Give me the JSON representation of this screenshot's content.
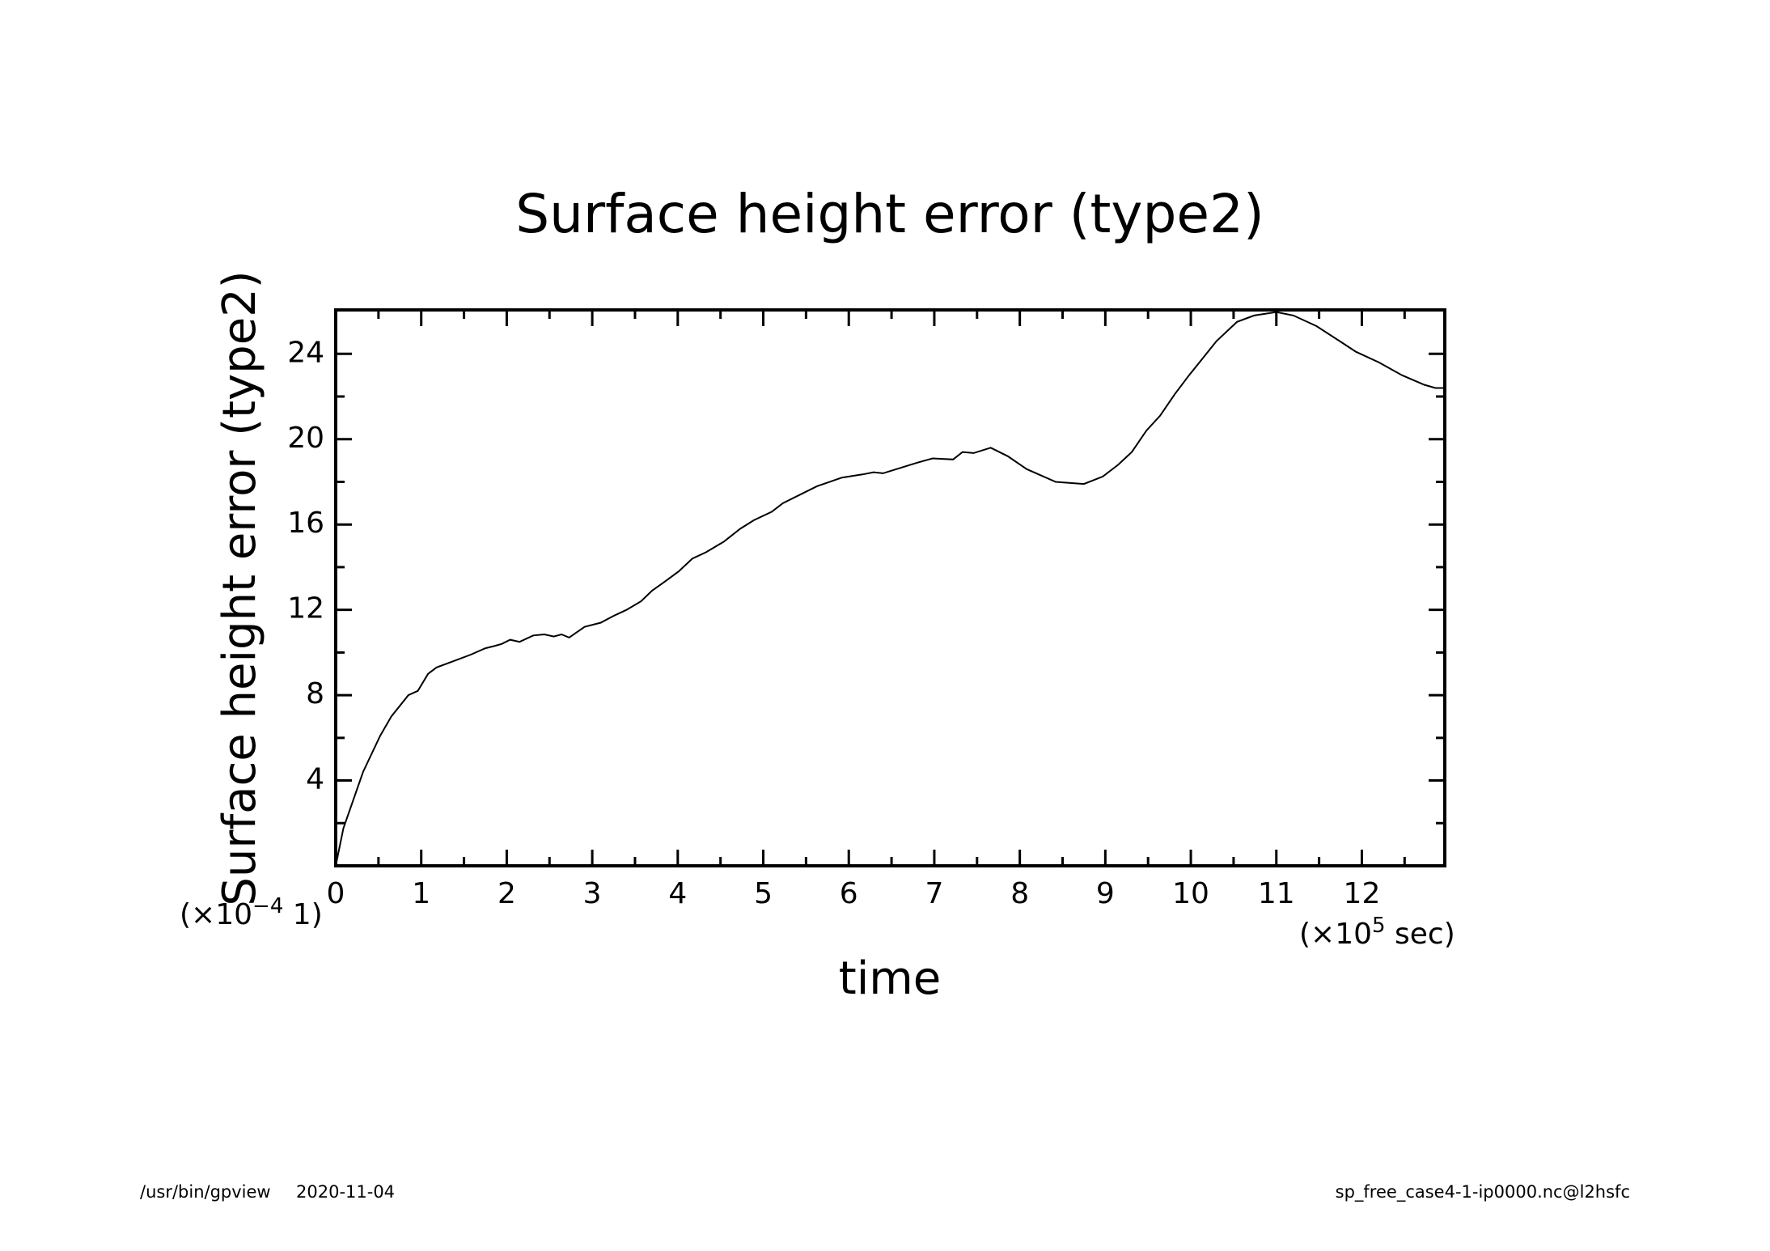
{
  "chart_data": {
    "type": "line",
    "title": "Surface height error (type2)",
    "xlabel": "time",
    "ylabel": "Surface height error (type2)",
    "x_multiplier": {
      "prefix": "(×10",
      "exponent": "5",
      "suffix": " sec)"
    },
    "y_multiplier": {
      "prefix": "(×10",
      "exponent": "−4",
      "suffix": " 1)"
    },
    "xlim": [
      0,
      12.97
    ],
    "ylim": [
      0,
      26.06
    ],
    "xticks": [
      0,
      1,
      2,
      3,
      4,
      5,
      6,
      7,
      8,
      9,
      10,
      11,
      12
    ],
    "yticks": [
      4,
      8,
      12,
      16,
      20,
      24
    ],
    "xminor_ticks": [
      0.5,
      1.5,
      2.5,
      3.5,
      4.5,
      5.5,
      6.5,
      7.5,
      8.5,
      9.5,
      10.5,
      11.5,
      12.5
    ],
    "yminor_ticks": [
      2,
      6,
      10,
      14,
      18,
      22
    ],
    "series": [
      {
        "color": "#000000",
        "x": [
          0,
          0.09,
          0.32,
          0.52,
          0.65,
          0.85,
          0.96,
          1.08,
          1.18,
          1.38,
          1.58,
          1.75,
          1.85,
          1.94,
          2.04,
          2.15,
          2.31,
          2.44,
          2.55,
          2.64,
          2.73,
          2.91,
          3.1,
          3.24,
          3.4,
          3.57,
          3.7,
          3.84,
          4.01,
          4.17,
          4.33,
          4.54,
          4.73,
          4.89,
          5.1,
          5.23,
          5.43,
          5.63,
          5.92,
          6.16,
          6.29,
          6.4,
          6.56,
          6.8,
          6.98,
          7.22,
          7.33,
          7.46,
          7.66,
          7.86,
          8.08,
          8.42,
          8.75,
          8.97,
          9.15,
          9.31,
          9.48,
          9.64,
          9.81,
          9.98,
          10.14,
          10.3,
          10.54,
          10.74,
          11.0,
          11.2,
          11.47,
          11.74,
          11.93,
          12.2,
          12.47,
          12.73,
          12.86,
          12.97
        ],
        "values": [
          0,
          1.76,
          4.4,
          6.1,
          7.0,
          8.0,
          8.2,
          9.0,
          9.3,
          9.6,
          9.9,
          10.2,
          10.3,
          10.4,
          10.6,
          10.5,
          10.8,
          10.85,
          10.75,
          10.85,
          10.7,
          11.2,
          11.4,
          11.7,
          12.0,
          12.4,
          12.9,
          13.3,
          13.8,
          14.4,
          14.7,
          15.2,
          15.8,
          16.2,
          16.6,
          17.0,
          17.4,
          17.8,
          18.2,
          18.35,
          18.45,
          18.4,
          18.6,
          18.9,
          19.1,
          19.05,
          19.4,
          19.35,
          19.6,
          19.2,
          18.6,
          18.0,
          17.9,
          18.25,
          18.8,
          19.4,
          20.4,
          21.1,
          22.1,
          23.0,
          23.8,
          24.6,
          25.5,
          25.8,
          25.96,
          25.8,
          25.3,
          24.6,
          24.1,
          23.6,
          23.0,
          22.55,
          22.4,
          22.4
        ]
      }
    ]
  },
  "footer": {
    "program": "/usr/bin/gpview",
    "date": "2020-11-04",
    "source": "sp_free_case4-1-ip0000.nc@l2hsfc"
  }
}
